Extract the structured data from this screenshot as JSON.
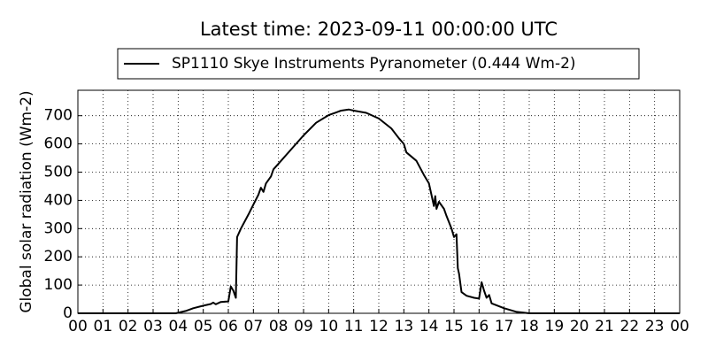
{
  "chart_data": {
    "type": "line",
    "title": "Latest time: 2023-09-11 00:00:00 UTC",
    "y_label": "Global solar radiation (Wm-2)",
    "x": [
      0,
      3.9,
      4.0,
      4.3,
      4.6,
      5.0,
      5.3,
      5.4,
      5.5,
      5.7,
      6.0,
      6.1,
      6.2,
      6.3,
      6.35,
      6.5,
      6.8,
      7.0,
      7.2,
      7.3,
      7.4,
      7.5,
      7.7,
      7.8,
      8.0,
      8.5,
      9.0,
      9.5,
      10.0,
      10.5,
      10.8,
      11.0,
      11.5,
      12.0,
      12.5,
      12.8,
      13.0,
      13.1,
      13.5,
      13.8,
      14.0,
      14.1,
      14.2,
      14.25,
      14.3,
      14.4,
      14.6,
      14.7,
      14.9,
      15.0,
      15.1,
      15.15,
      15.2,
      15.3,
      15.5,
      15.8,
      16.0,
      16.1,
      16.2,
      16.3,
      16.4,
      16.5,
      17.0,
      17.5,
      18.0,
      24.0
    ],
    "series": [
      {
        "name": "SP1110 Skye Instruments Pyranometer (0.444 Wm-2)",
        "color": "#000000",
        "values": [
          0,
          0,
          2,
          8,
          18,
          27,
          33,
          38,
          32,
          40,
          42,
          95,
          80,
          55,
          270,
          300,
          350,
          385,
          420,
          445,
          430,
          460,
          485,
          510,
          530,
          580,
          630,
          675,
          702,
          718,
          722,
          718,
          710,
          690,
          655,
          620,
          600,
          570,
          540,
          490,
          460,
          420,
          380,
          415,
          370,
          395,
          370,
          345,
          300,
          270,
          280,
          160,
          140,
          75,
          62,
          55,
          52,
          110,
          80,
          55,
          65,
          35,
          18,
          5,
          0,
          0
        ]
      }
    ],
    "xlim": [
      0,
      24
    ],
    "xticks": [
      {
        "value": 0,
        "label": "00"
      },
      {
        "value": 1,
        "label": "01"
      },
      {
        "value": 2,
        "label": "02"
      },
      {
        "value": 3,
        "label": "03"
      },
      {
        "value": 4,
        "label": "04"
      },
      {
        "value": 5,
        "label": "05"
      },
      {
        "value": 6,
        "label": "06"
      },
      {
        "value": 7,
        "label": "07"
      },
      {
        "value": 8,
        "label": "08"
      },
      {
        "value": 9,
        "label": "09"
      },
      {
        "value": 10,
        "label": "10"
      },
      {
        "value": 11,
        "label": "11"
      },
      {
        "value": 12,
        "label": "12"
      },
      {
        "value": 13,
        "label": "13"
      },
      {
        "value": 14,
        "label": "14"
      },
      {
        "value": 15,
        "label": "15"
      },
      {
        "value": 16,
        "label": "16"
      },
      {
        "value": 17,
        "label": "17"
      },
      {
        "value": 18,
        "label": "18"
      },
      {
        "value": 19,
        "label": "19"
      },
      {
        "value": 20,
        "label": "20"
      },
      {
        "value": 21,
        "label": "21"
      },
      {
        "value": 22,
        "label": "22"
      },
      {
        "value": 23,
        "label": "23"
      },
      {
        "value": 24,
        "label": "00"
      }
    ],
    "ylim": [
      0,
      790
    ],
    "yticks": [
      0,
      100,
      200,
      300,
      400,
      500,
      600,
      700
    ],
    "grid": true
  }
}
